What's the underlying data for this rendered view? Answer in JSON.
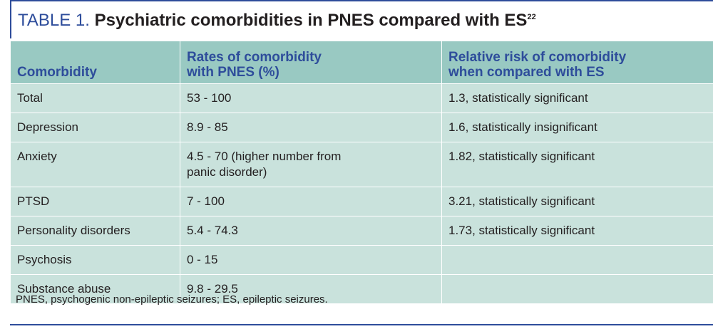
{
  "title": {
    "label": "TABLE 1.",
    "main": "Psychiatric comorbidities in PNES compared with ES",
    "superscript": "22"
  },
  "table": {
    "headers": [
      "Comorbidity",
      "Rates of comorbidity with PNES (%)",
      "Relative risk of comorbidity when compared with ES"
    ],
    "rows": [
      [
        "Total",
        "53 - 100",
        "1.3, statistically significant"
      ],
      [
        "Depression",
        "8.9 - 85",
        "1.6, statistically insignificant"
      ],
      [
        "Anxiety",
        "4.5 - 70 (higher number from panic disorder)",
        "1.82, statistically significant"
      ],
      [
        "PTSD",
        "7 - 100",
        "3.21, statistically significant"
      ],
      [
        "Personality disorders",
        "5.4 - 74.3",
        "1.73, statistically significant"
      ],
      [
        "Psychosis",
        "0 - 15",
        ""
      ],
      [
        "Substance abuse",
        "9.8 - 29.5",
        ""
      ]
    ]
  },
  "footnote": "PNES, psychogenic non-epileptic seizures; ES, epileptic seizures.",
  "colors": {
    "accent_blue": "#2e4d9b",
    "header_fill": "#99c9c2",
    "body_fill": "#c9e2dc",
    "text": "#231f20"
  }
}
